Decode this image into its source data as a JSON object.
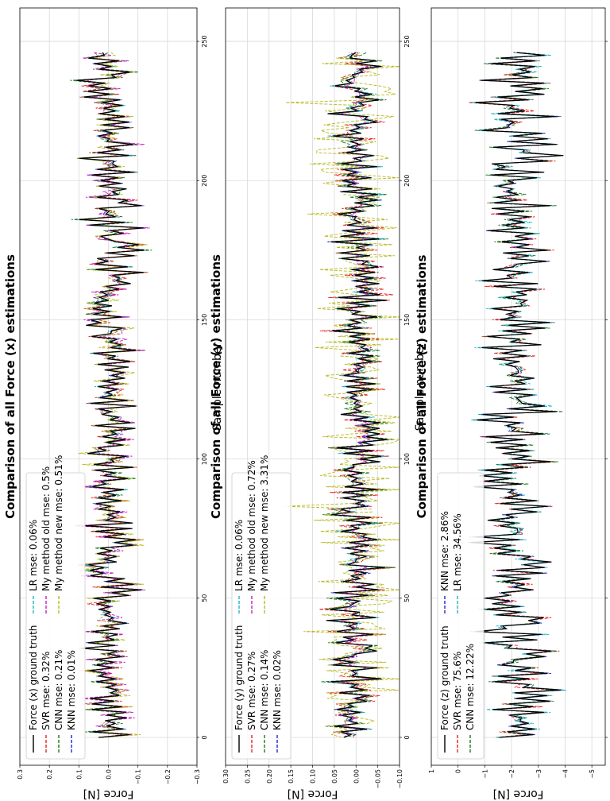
{
  "figure": {
    "colors": {
      "ground_truth": "#000000",
      "svr": "#e8221c",
      "cnn": "#1a7a1a",
      "knn": "#2222cc",
      "lr": "#1fb5c0",
      "old": "#c020c0",
      "new": "#b8b81e",
      "grid": "#d9d9d9"
    }
  },
  "chart_data": [
    {
      "type": "line",
      "title": "Comparison of all Force (x) estimations",
      "xlabel": "Sample number",
      "ylabel": "Force [N]",
      "xlim": [
        -10,
        262
      ],
      "ylim": [
        -0.3,
        0.3
      ],
      "xticks": [
        0,
        50,
        100,
        150,
        200,
        250
      ],
      "xtick_labels": [
        "0",
        "50",
        "100",
        "150",
        "200",
        "250"
      ],
      "yticks": [
        0.3,
        0.2,
        0.1,
        0.0,
        -0.1,
        -0.2,
        -0.3
      ],
      "ytick_labels": [
        "0.3",
        "0.2",
        "0.1",
        "0.0",
        "−0.1",
        "−0.2",
        "−0.3"
      ],
      "grid": true,
      "legend_location": "upper-left",
      "legend_columns": 2,
      "amplitude": 0.09,
      "seed": 11,
      "n_samples": 247,
      "series": [
        {
          "name": "Force (x) ground truth",
          "label": "Force (x) ground truth",
          "color_key": "ground_truth",
          "dash": "solid",
          "noise": 0.0
        },
        {
          "name": "SVR",
          "label": "SVR mse: 0.32%",
          "color_key": "svr",
          "dash": "dashed",
          "noise": 0.035
        },
        {
          "name": "CNN",
          "label": "CNN mse: 0.21%",
          "color_key": "cnn",
          "dash": "dashed",
          "noise": 0.03
        },
        {
          "name": "KNN",
          "label": "KNN mse: 0.01%",
          "color_key": "knn",
          "dash": "dashed",
          "noise": 0.01
        },
        {
          "name": "LR",
          "label": "LR mse: 0.06%",
          "color_key": "lr",
          "dash": "dashed",
          "noise": 0.015
        },
        {
          "name": "My method old",
          "label": "My method old mse: 0.5%",
          "color_key": "old",
          "dash": "dashed",
          "noise": 0.04
        },
        {
          "name": "My method new",
          "label": "My method new mse: 0.51%",
          "color_key": "new",
          "dash": "dashed",
          "noise": 0.04
        }
      ]
    },
    {
      "type": "line",
      "title": "Comparison of all Force (y) estimations",
      "xlabel": "Sample number",
      "ylabel": "Force [N]",
      "xlim": [
        -10,
        262
      ],
      "ylim": [
        -0.1,
        0.3
      ],
      "xticks": [
        0,
        50,
        100,
        150,
        200,
        250
      ],
      "xtick_labels": [
        "0",
        "50",
        "100",
        "150",
        "200",
        "250"
      ],
      "yticks": [
        0.3,
        0.25,
        0.2,
        0.15,
        0.1,
        0.05,
        0.0,
        -0.05,
        -0.1
      ],
      "ytick_labels": [
        "0.30",
        "0.25",
        "0.20",
        "0.15",
        "0.10",
        "0.05",
        "0.00",
        "−0.05",
        "−0.10"
      ],
      "grid": true,
      "legend_location": "upper-left",
      "legend_columns": 2,
      "amplitude": 0.06,
      "seed": 23,
      "n_samples": 247,
      "series": [
        {
          "name": "Force (y) ground truth",
          "label": "Force (y) ground truth",
          "color_key": "ground_truth",
          "dash": "solid",
          "noise": 0.0
        },
        {
          "name": "SVR",
          "label": "SVR mse: 0.27%",
          "color_key": "svr",
          "dash": "dashed",
          "noise": 0.03
        },
        {
          "name": "CNN",
          "label": "CNN mse: 0.14%",
          "color_key": "cnn",
          "dash": "dashed",
          "noise": 0.025
        },
        {
          "name": "KNN",
          "label": "KNN mse: 0.02%",
          "color_key": "knn",
          "dash": "dashed",
          "noise": 0.01
        },
        {
          "name": "LR",
          "label": "LR mse: 0.06%",
          "color_key": "lr",
          "dash": "dashed",
          "noise": 0.015
        },
        {
          "name": "My method old",
          "label": "My method old mse: 0.72%",
          "color_key": "old",
          "dash": "dashed",
          "noise": 0.035
        },
        {
          "name": "My method new",
          "label": "My method new mse: 3.31%",
          "color_key": "new",
          "dash": "dashed",
          "noise": 0.08
        }
      ]
    },
    {
      "type": "line",
      "title": "Comparison of all Force (z) estimations",
      "xlabel": "Sample number",
      "ylabel": "Force [N]",
      "xlim": [
        -10,
        262
      ],
      "ylim": [
        -5.5,
        1
      ],
      "xticks": [
        0,
        50,
        100,
        150,
        200,
        250
      ],
      "xtick_labels": [
        "0",
        "50",
        "100",
        "150",
        "200",
        "250"
      ],
      "yticks": [
        1,
        0,
        -1,
        -2,
        -3,
        -4,
        -5
      ],
      "ytick_labels": [
        "1",
        "0",
        "−1",
        "−2",
        "−3",
        "−4",
        "−5"
      ],
      "grid": true,
      "legend_location": "upper-left",
      "legend_columns": 2,
      "amplitude": 1.4,
      "center": -2.2,
      "seed": 37,
      "n_samples": 247,
      "series": [
        {
          "name": "Force (z) ground truth",
          "label": "Force (z) ground truth",
          "color_key": "ground_truth",
          "dash": "solid",
          "noise": 0.0
        },
        {
          "name": "SVR",
          "label": "SVR mse: 75.6%",
          "color_key": "svr",
          "dash": "dashed",
          "noise": 0.35
        },
        {
          "name": "CNN",
          "label": "CNN mse: 12.22%",
          "color_key": "cnn",
          "dash": "dashed",
          "noise": 0.3
        },
        {
          "name": "KNN",
          "label": "KNN mse: 2.86%",
          "color_key": "knn",
          "dash": "dashed",
          "noise": 0.15
        },
        {
          "name": "LR",
          "label": "LR mse: 34.56%",
          "color_key": "lr",
          "dash": "dashed",
          "noise": 0.3
        }
      ]
    }
  ]
}
